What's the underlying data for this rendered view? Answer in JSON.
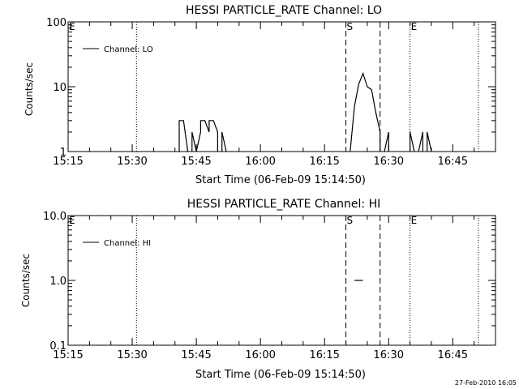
{
  "footer": {
    "timestamp": "27-Feb-2010 16:05"
  },
  "chart_data": [
    {
      "type": "line",
      "title": "HESSI PARTICLE_RATE Channel: LO",
      "xlabel": "Start Time (06-Feb-09 15:14:50)",
      "ylabel": "Counts/sec",
      "yscale": "log",
      "ylim": [
        1,
        100
      ],
      "xlim": [
        "15:15",
        "16:55"
      ],
      "x_tick_labels": [
        "15:15",
        "15:30",
        "15:45",
        "16:00",
        "16:15",
        "16:30",
        "16:45"
      ],
      "y_tick_labels": [
        "1",
        "10",
        "100"
      ],
      "legend": {
        "placement": "top-left",
        "entries": [
          "Channel: LO"
        ]
      },
      "markers": [
        {
          "label": "E",
          "time": "15:15",
          "style": "dotted"
        },
        {
          "label": "",
          "time": "15:31",
          "style": "dotted"
        },
        {
          "label": "S",
          "time": "16:20",
          "style": "dashed"
        },
        {
          "label": "",
          "time": "16:28",
          "style": "dashed"
        },
        {
          "label": "E",
          "time": "16:35",
          "style": "dotted"
        },
        {
          "label": "",
          "time": "16:51",
          "style": "dotted"
        }
      ],
      "series": [
        {
          "name": "Channel: LO",
          "segments": [
            [
              [
                "15:41",
                "1"
              ],
              [
                "15:41",
                "3"
              ],
              [
                "15:42",
                "3"
              ],
              [
                "15:43",
                "1"
              ]
            ],
            [
              [
                "15:44",
                "1"
              ],
              [
                "15:44",
                "2"
              ],
              [
                "15:45",
                "1"
              ]
            ],
            [
              [
                "15:45",
                "1"
              ],
              [
                "15:46",
                "2"
              ],
              [
                "15:46",
                "3"
              ],
              [
                "15:47",
                "3"
              ],
              [
                "15:48",
                "2"
              ],
              [
                "15:48",
                "3"
              ],
              [
                "15:49",
                "3"
              ],
              [
                "15:50",
                "2"
              ],
              [
                "15:50",
                "1"
              ]
            ],
            [
              [
                "15:51",
                "1"
              ],
              [
                "15:51",
                "2"
              ],
              [
                "15:52",
                "1"
              ]
            ],
            [
              [
                "16:21",
                "1"
              ],
              [
                "16:22",
                "5"
              ],
              [
                "16:23",
                "11"
              ],
              [
                "16:24",
                "16"
              ],
              [
                "16:25",
                "10"
              ],
              [
                "16:26",
                "9"
              ],
              [
                "16:27",
                "4"
              ],
              [
                "16:28",
                "2"
              ],
              [
                "16:28",
                "1"
              ]
            ],
            [
              [
                "16:29",
                "1"
              ],
              [
                "16:30",
                "2"
              ],
              [
                "16:30",
                "1"
              ]
            ],
            [
              [
                "16:35",
                "1"
              ],
              [
                "16:35",
                "2"
              ],
              [
                "16:36",
                "1"
              ]
            ],
            [
              [
                "16:37",
                "1"
              ],
              [
                "16:38",
                "2"
              ],
              [
                "16:38",
                "1"
              ]
            ],
            [
              [
                "16:39",
                "1"
              ],
              [
                "16:39",
                "2"
              ],
              [
                "16:40",
                "1"
              ]
            ]
          ]
        }
      ]
    },
    {
      "type": "line",
      "title": "HESSI PARTICLE_RATE Channel: HI",
      "xlabel": "Start Time (06-Feb-09 15:14:50)",
      "ylabel": "Counts/sec",
      "yscale": "log",
      "ylim": [
        0.1,
        10
      ],
      "xlim": [
        "15:15",
        "16:55"
      ],
      "x_tick_labels": [
        "15:15",
        "15:30",
        "15:45",
        "16:00",
        "16:15",
        "16:30",
        "16:45"
      ],
      "y_tick_labels": [
        "0.1",
        "1.0",
        "10.0"
      ],
      "legend": {
        "placement": "top-left",
        "entries": [
          "Channel: HI"
        ]
      },
      "markers": [
        {
          "label": "E",
          "time": "15:15",
          "style": "dotted"
        },
        {
          "label": "",
          "time": "15:31",
          "style": "dotted"
        },
        {
          "label": "S",
          "time": "16:20",
          "style": "dashed"
        },
        {
          "label": "",
          "time": "16:28",
          "style": "dashed"
        },
        {
          "label": "E",
          "time": "16:35",
          "style": "dotted"
        },
        {
          "label": "",
          "time": "16:51",
          "style": "dotted"
        }
      ],
      "series": [
        {
          "name": "Channel: HI",
          "segments": [
            [
              [
                "16:22",
                "1"
              ],
              [
                "16:24",
                "1"
              ]
            ]
          ]
        }
      ]
    }
  ]
}
